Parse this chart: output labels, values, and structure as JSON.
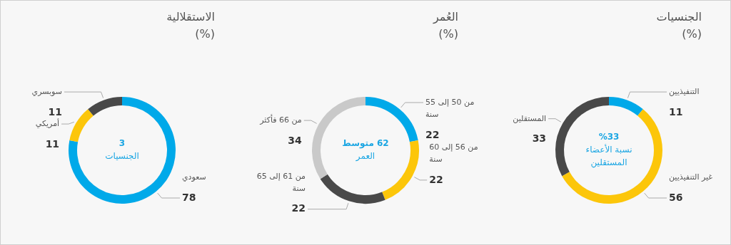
{
  "chart_data": [
    {
      "type": "donut",
      "title": "الاستقلالية",
      "subtitle": "(%)",
      "categories": [
        "سعودي",
        "أمريكي",
        "سوبسري"
      ],
      "values": [
        78,
        11,
        11
      ],
      "colors": [
        "#00a9e9",
        "#fcc60a",
        "#494949"
      ],
      "annotations": [
        "3",
        "الجنسيات"
      ],
      "data_labels": true,
      "legend": false
    },
    {
      "type": "donut",
      "title": "العُمر",
      "subtitle": "(%)",
      "categories": [
        "من 50 إلى 55 سنة",
        "من 56 إلى 60 سنة",
        "من 61 إلى 65 سنة",
        "من 66 فأكثر"
      ],
      "values": [
        22,
        22,
        22,
        34
      ],
      "colors": [
        "#00a9e9",
        "#fcc60a",
        "#494949",
        "#c9c9c9"
      ],
      "annotations": [
        "62 متوسط",
        "العمر"
      ],
      "data_labels": true,
      "legend": false
    },
    {
      "type": "donut",
      "title": "الجنسيات",
      "subtitle": "(%)",
      "categories": [
        "التنفيذيين",
        "غير التنفيذيين",
        "المستقلين"
      ],
      "values": [
        11,
        56,
        33
      ],
      "colors": [
        "#00a9e9",
        "#fcc60a",
        "#494949"
      ],
      "annotations": [
        "%33",
        "نسبة الأعضاء",
        "المستقلين"
      ],
      "data_labels": true,
      "legend": false
    }
  ]
}
